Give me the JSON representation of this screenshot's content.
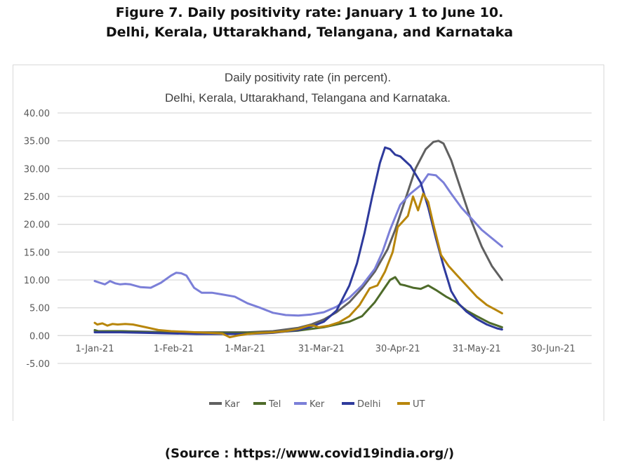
{
  "figure": {
    "title_line1": "Figure 7. Daily positivity rate: January 1 to June 10.",
    "title_line2": "Delhi, Kerala, Uttarakhand, Telangana, and Karnataka"
  },
  "source": "(Source : https://www.covid19india.org/)",
  "chart_data": {
    "type": "line",
    "title": "Daily positivity rate (in percent).",
    "subtitle": "Delhi, Kerala, Uttarakhand, Telangana and Karnataka.",
    "xlabel": "",
    "ylabel": "",
    "x_unit": "days since 1-Jan-21",
    "xlim": [
      -15,
      195
    ],
    "ylim": [
      -5,
      40
    ],
    "grid": true,
    "legend_position": "bottom",
    "y_ticks": [
      40,
      35,
      30,
      25,
      20,
      15,
      10,
      5,
      0,
      -5
    ],
    "y_tick_labels": [
      "40.00",
      "35.00",
      "30.00",
      "25.00",
      "20.00",
      "15.00",
      "10.00",
      "5.00",
      "0.00",
      "-5.00"
    ],
    "x_ticks": [
      0,
      31,
      59,
      89,
      119,
      150,
      180
    ],
    "x_tick_labels": [
      "1-Jan-21",
      "1-Feb-21",
      "1-Mar-21",
      "31-Mar-21",
      "30-Apr-21",
      "31-May-21",
      "30-Jun-21"
    ],
    "series": [
      {
        "name": "Kar",
        "color": "#606060",
        "x": [
          0,
          10,
          20,
          30,
          40,
          50,
          60,
          70,
          80,
          85,
          90,
          95,
          100,
          105,
          110,
          115,
          118,
          122,
          126,
          130,
          133,
          135,
          137,
          140,
          144,
          148,
          152,
          156,
          160
        ],
        "y": [
          0.8,
          0.8,
          0.7,
          0.6,
          0.6,
          0.6,
          0.6,
          0.8,
          1.4,
          2.0,
          2.9,
          4.2,
          6.0,
          8.5,
          11.5,
          15.5,
          19.0,
          24.5,
          30.0,
          33.5,
          34.8,
          35.0,
          34.5,
          31.5,
          26.0,
          20.5,
          16.0,
          12.5,
          10.0
        ]
      },
      {
        "name": "Tel",
        "color": "#4e6b2a",
        "x": [
          0,
          2,
          5,
          10,
          20,
          30,
          40,
          50,
          60,
          70,
          80,
          90,
          100,
          105,
          110,
          113,
          116,
          118,
          120,
          122,
          125,
          128,
          131,
          134,
          138,
          142,
          146,
          150,
          155,
          160
        ],
        "y": [
          1.0,
          0.7,
          0.8,
          0.8,
          0.6,
          0.5,
          0.5,
          0.5,
          0.5,
          0.6,
          0.9,
          1.5,
          2.5,
          3.5,
          6.0,
          8.0,
          10.0,
          10.5,
          9.2,
          9.0,
          8.6,
          8.4,
          9.0,
          8.2,
          7.0,
          6.0,
          4.5,
          3.5,
          2.3,
          1.5
        ]
      },
      {
        "name": "Ker",
        "color": "#7b7fd8",
        "x": [
          0,
          2,
          4,
          6,
          8,
          10,
          12,
          14,
          18,
          22,
          26,
          30,
          32,
          34,
          36,
          39,
          42,
          46,
          50,
          55,
          60,
          65,
          70,
          75,
          80,
          85,
          90,
          95,
          100,
          105,
          110,
          113,
          116,
          120,
          124,
          128,
          131,
          134,
          137,
          140,
          144,
          148,
          152,
          156,
          160
        ],
        "y": [
          9.8,
          9.5,
          9.2,
          9.8,
          9.4,
          9.2,
          9.3,
          9.2,
          8.7,
          8.6,
          9.5,
          10.8,
          11.3,
          11.2,
          10.8,
          8.6,
          7.7,
          7.7,
          7.4,
          7.0,
          5.8,
          5.0,
          4.1,
          3.7,
          3.6,
          3.8,
          4.2,
          5.2,
          6.8,
          9.0,
          12.0,
          15.0,
          19.0,
          23.5,
          25.5,
          27.0,
          29.0,
          28.8,
          27.5,
          25.5,
          23.0,
          21.0,
          19.0,
          17.5,
          16.0
        ]
      },
      {
        "name": "Delhi",
        "color": "#2e3a9c",
        "x": [
          0,
          10,
          20,
          30,
          40,
          50,
          60,
          70,
          80,
          85,
          90,
          95,
          100,
          103,
          106,
          109,
          112,
          114,
          116,
          118,
          120,
          124,
          128,
          131,
          134,
          137,
          140,
          143,
          146,
          150,
          154,
          158,
          160
        ],
        "y": [
          0.6,
          0.6,
          0.5,
          0.4,
          0.3,
          0.3,
          0.3,
          0.5,
          1.0,
          1.6,
          2.5,
          4.5,
          9.0,
          13.0,
          18.5,
          25.0,
          31.0,
          33.8,
          33.5,
          32.5,
          32.2,
          30.5,
          27.5,
          23.0,
          17.5,
          12.5,
          8.0,
          5.7,
          4.3,
          3.0,
          2.0,
          1.3,
          1.1
        ]
      },
      {
        "name": "UT",
        "color": "#b8860b",
        "x": [
          0,
          1,
          3,
          5,
          7,
          9,
          12,
          15,
          20,
          25,
          30,
          35,
          40,
          45,
          50,
          53,
          56,
          60,
          65,
          70,
          75,
          80,
          84,
          86,
          88,
          92,
          96,
          100,
          104,
          108,
          111,
          114,
          117,
          119,
          121,
          123,
          125,
          127,
          129,
          131,
          133,
          136,
          139,
          142,
          146,
          150,
          154,
          158,
          160
        ],
        "y": [
          2.3,
          2.0,
          2.2,
          1.8,
          2.1,
          2.0,
          2.1,
          2.0,
          1.5,
          1.0,
          0.8,
          0.7,
          0.6,
          0.5,
          0.4,
          -0.3,
          0.0,
          0.3,
          0.5,
          0.6,
          0.8,
          1.2,
          1.8,
          1.8,
          1.5,
          1.8,
          2.4,
          3.5,
          5.5,
          8.5,
          9.0,
          11.5,
          15.0,
          19.5,
          20.5,
          21.5,
          25.0,
          22.5,
          25.5,
          24.0,
          20.0,
          14.5,
          12.5,
          11.0,
          9.0,
          7.0,
          5.5,
          4.5,
          4.0
        ]
      }
    ]
  }
}
